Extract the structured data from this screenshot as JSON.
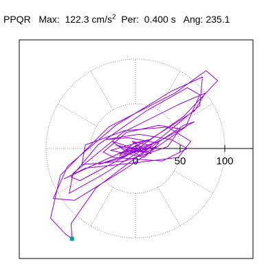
{
  "header": {
    "station": "PPQR",
    "max_label": "Max:",
    "max_value": "122.3",
    "max_unit_base": "cm/s",
    "max_unit_exp": "2",
    "per_label": "Per:",
    "per_value": "0.400 s",
    "ang_label": "Ang:",
    "ang_value": "235.1"
  },
  "chart_data": {
    "type": "scatter",
    "title": "PPQR  Max: 122.3 cm/s2  Per: 0.400 s  Ang: 235.1",
    "xlabel": "",
    "ylabel": "",
    "units": "cm/s2",
    "xlim": [
      -150,
      140
    ],
    "ylim": [
      -120,
      120
    ],
    "polar_grid": {
      "rings": [
        50,
        100
      ],
      "spoke_step_deg": 30
    },
    "axis_ticks": [
      0,
      50,
      100
    ],
    "tick_labels": [
      "0",
      "50",
      "100"
    ],
    "max_amplitude": 122.3,
    "period_s": 0.4,
    "max_angle_deg": 235.1,
    "max_point": {
      "x": -71,
      "y": -101
    },
    "series": [
      {
        "points": [
          [
            -14,
            2
          ],
          [
            8,
            -2
          ],
          [
            -20,
            -6
          ],
          [
            14,
            4
          ],
          [
            -4,
            8
          ],
          [
            18,
            -6
          ],
          [
            -22,
            4
          ],
          [
            6,
            -8
          ],
          [
            20,
            6
          ],
          [
            -10,
            -4
          ],
          [
            -26,
            8
          ],
          [
            12,
            -4
          ],
          [
            24,
            2
          ],
          [
            -18,
            -8
          ],
          [
            -2,
            6
          ],
          [
            16,
            10
          ],
          [
            -28,
            -2
          ],
          [
            10,
            -10
          ],
          [
            26,
            6
          ],
          [
            -8,
            12
          ],
          [
            -34,
            10
          ],
          [
            4,
            16
          ],
          [
            40,
            10
          ],
          [
            58,
            0
          ],
          [
            30,
            -14
          ],
          [
            -24,
            -10
          ],
          [
            -36,
            -4
          ],
          [
            -10,
            18
          ],
          [
            26,
            26
          ],
          [
            50,
            22
          ],
          [
            36,
            2
          ],
          [
            -12,
            -14
          ],
          [
            -60,
            -18
          ],
          [
            -56,
            4
          ],
          [
            -12,
            20
          ],
          [
            36,
            24
          ],
          [
            62,
            8
          ],
          [
            48,
            -10
          ],
          [
            0,
            -16
          ],
          [
            -56,
            -22
          ],
          [
            -80,
            -34
          ],
          [
            -50,
            -20
          ],
          [
            16,
            10
          ],
          [
            66,
            42
          ],
          [
            78,
            62
          ],
          [
            50,
            50
          ],
          [
            -14,
            18
          ],
          [
            -70,
            -28
          ],
          [
            -74,
            -50
          ],
          [
            -38,
            -30
          ],
          [
            26,
            10
          ],
          [
            72,
            48
          ],
          [
            75,
            80
          ],
          [
            40,
            64
          ],
          [
            -22,
            26
          ],
          [
            -76,
            -20
          ],
          [
            -92,
            -56
          ],
          [
            -68,
            -58
          ],
          [
            -10,
            -22
          ],
          [
            56,
            24
          ],
          [
            72,
            60
          ],
          [
            58,
            68
          ],
          [
            12,
            42
          ],
          [
            -42,
            4
          ],
          [
            -72,
            -32
          ],
          [
            -62,
            -36
          ],
          [
            -6,
            -6
          ],
          [
            54,
            36
          ],
          [
            92,
            76
          ],
          [
            79,
            87
          ],
          [
            44,
            62
          ],
          [
            -30,
            24
          ],
          [
            -84,
            -30
          ],
          [
            -95,
            -78
          ],
          [
            -78,
            -96
          ],
          [
            -71,
            -101
          ],
          [
            -72,
            -84
          ],
          [
            -44,
            -44
          ],
          [
            6,
            -6
          ],
          [
            54,
            26
          ],
          [
            66,
            30
          ],
          [
            30,
            10
          ],
          [
            -20,
            -12
          ],
          [
            -42,
            -18
          ],
          [
            -12,
            -8
          ],
          [
            18,
            2
          ],
          [
            8,
            -4
          ],
          [
            -10,
            -2
          ],
          [
            4,
            4
          ],
          [
            -2,
            -2
          ]
        ]
      }
    ]
  },
  "colors": {
    "trace": "#9400d3",
    "marker": "#00a381",
    "grid": "#808080",
    "frame": "#000000"
  }
}
